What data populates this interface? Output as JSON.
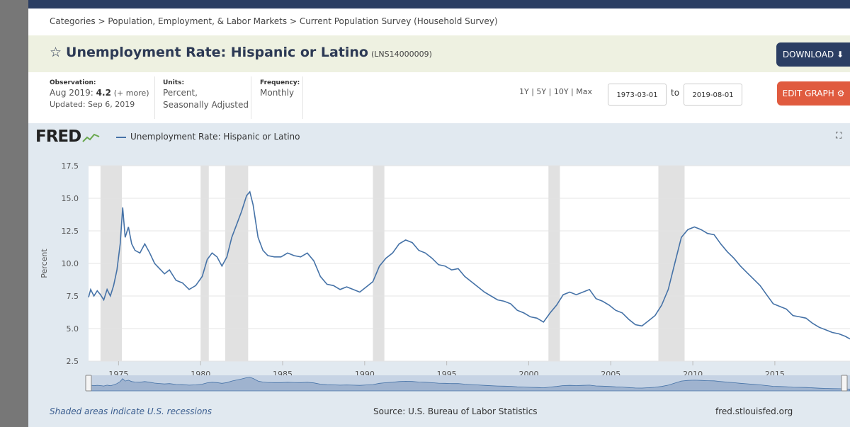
{
  "breadcrumb": "Categories > Population, Employment, & Labor Markets > Current Population Survey (Household Survey)",
  "title": {
    "star_icon": "star-outline-icon",
    "text": "Unemployment Rate: Hispanic or Latino",
    "series_id": "(LNS14000009)"
  },
  "buttons": {
    "download": "DOWNLOAD",
    "download_icon": "download-icon",
    "edit_graph": "EDIT GRAPH",
    "edit_icon": "gear-icon"
  },
  "observation": {
    "label": "Observation:",
    "date": "Aug 2019:",
    "value": "4.2",
    "more": "(+ more)",
    "updated": "Updated: Sep 6, 2019"
  },
  "units": {
    "label": "Units:",
    "line1": "Percent,",
    "line2": "Seasonally Adjusted"
  },
  "frequency": {
    "label": "Frequency:",
    "value": "Monthly"
  },
  "range_links": "1Y | 5Y | 10Y | Max",
  "date_from": "1973-03-01",
  "date_to": "2019-08-01",
  "to_label": "to",
  "logo": "FRED",
  "legend_label": "Unemployment Rate: Hispanic or Latino",
  "footer": {
    "recessions": "Shaded areas indicate U.S. recessions",
    "source": "Source: U.S. Bureau of Labor Statistics",
    "site": "fred.stlouisfed.org"
  },
  "colors": {
    "line": "#4572a7",
    "recession": "#e1e1e1",
    "header": "#2b3e63",
    "edit_button": "#e05b3f"
  },
  "chart_data": {
    "type": "line",
    "ylabel": "Percent",
    "ylim": [
      2.5,
      17.5
    ],
    "yticks": [
      2.5,
      5.0,
      7.5,
      10.0,
      12.5,
      15.0,
      17.5
    ],
    "ytick_labels": [
      "2.5",
      "5.0",
      "7.5",
      "10.0",
      "12.5",
      "15.0",
      "17.5"
    ],
    "xlim": [
      1973.17,
      2019.58
    ],
    "xticks": [
      1975,
      1980,
      1985,
      1990,
      1995,
      2000,
      2005,
      2010,
      2015
    ],
    "xtick_labels": [
      "1975",
      "1980",
      "1985",
      "1990",
      "1995",
      "2000",
      "2005",
      "2010",
      "2015"
    ],
    "recessions": [
      [
        1973.9,
        1975.2
      ],
      [
        1980.0,
        1980.5
      ],
      [
        1981.5,
        1982.9
      ],
      [
        1990.5,
        1991.2
      ],
      [
        2001.2,
        2001.9
      ],
      [
        2007.9,
        2009.5
      ]
    ],
    "series": [
      {
        "name": "Unemployment Rate: Hispanic or Latino",
        "x": [
          1973.17,
          1973.3,
          1973.5,
          1973.7,
          1973.9,
          1974.1,
          1974.3,
          1974.5,
          1974.7,
          1974.9,
          1975.1,
          1975.25,
          1975.4,
          1975.6,
          1975.8,
          1976.0,
          1976.3,
          1976.6,
          1976.9,
          1977.2,
          1977.5,
          1977.8,
          1978.1,
          1978.5,
          1978.9,
          1979.3,
          1979.7,
          1980.1,
          1980.4,
          1980.7,
          1981.0,
          1981.3,
          1981.6,
          1981.9,
          1982.2,
          1982.5,
          1982.8,
          1983.0,
          1983.2,
          1983.5,
          1983.8,
          1984.1,
          1984.5,
          1984.9,
          1985.3,
          1985.7,
          1986.1,
          1986.5,
          1986.9,
          1987.3,
          1987.7,
          1988.1,
          1988.5,
          1988.9,
          1989.3,
          1989.7,
          1990.1,
          1990.5,
          1990.9,
          1991.3,
          1991.7,
          1992.1,
          1992.5,
          1992.9,
          1993.3,
          1993.7,
          1994.1,
          1994.5,
          1994.9,
          1995.3,
          1995.7,
          1996.1,
          1996.5,
          1996.9,
          1997.3,
          1997.7,
          1998.1,
          1998.5,
          1998.9,
          1999.3,
          1999.7,
          2000.1,
          2000.5,
          2000.9,
          2001.3,
          2001.7,
          2002.1,
          2002.5,
          2002.9,
          2003.3,
          2003.7,
          2004.1,
          2004.5,
          2004.9,
          2005.3,
          2005.7,
          2006.1,
          2006.5,
          2006.9,
          2007.3,
          2007.7,
          2008.1,
          2008.5,
          2008.9,
          2009.3,
          2009.7,
          2010.1,
          2010.5,
          2010.9,
          2011.3,
          2011.7,
          2012.1,
          2012.5,
          2012.9,
          2013.3,
          2013.7,
          2014.1,
          2014.5,
          2014.9,
          2015.3,
          2015.7,
          2016.1,
          2016.5,
          2016.9,
          2017.3,
          2017.7,
          2018.1,
          2018.5,
          2018.9,
          2019.3,
          2019.58
        ],
        "values": [
          7.4,
          8.0,
          7.5,
          7.9,
          7.6,
          7.2,
          8.0,
          7.5,
          8.3,
          9.5,
          11.5,
          14.3,
          12.0,
          12.8,
          11.5,
          11.0,
          10.8,
          11.5,
          10.8,
          10.0,
          9.6,
          9.2,
          9.5,
          8.7,
          8.5,
          8.0,
          8.3,
          9.0,
          10.3,
          10.8,
          10.5,
          9.8,
          10.5,
          12.0,
          13.0,
          14.0,
          15.2,
          15.5,
          14.5,
          12.0,
          11.0,
          10.6,
          10.5,
          10.5,
          10.8,
          10.6,
          10.5,
          10.8,
          10.2,
          9.0,
          8.4,
          8.3,
          8.0,
          8.2,
          8.0,
          7.8,
          8.2,
          8.6,
          9.8,
          10.4,
          10.8,
          11.5,
          11.8,
          11.6,
          11.0,
          10.8,
          10.4,
          9.9,
          9.8,
          9.5,
          9.6,
          9.0,
          8.6,
          8.2,
          7.8,
          7.5,
          7.2,
          7.1,
          6.9,
          6.4,
          6.2,
          5.9,
          5.8,
          5.5,
          6.2,
          6.8,
          7.6,
          7.8,
          7.6,
          7.8,
          8.0,
          7.3,
          7.1,
          6.8,
          6.4,
          6.2,
          5.7,
          5.3,
          5.2,
          5.6,
          6.0,
          6.8,
          8.0,
          10.0,
          12.0,
          12.6,
          12.8,
          12.6,
          12.3,
          12.2,
          11.5,
          10.9,
          10.4,
          9.8,
          9.3,
          8.8,
          8.3,
          7.6,
          6.9,
          6.7,
          6.5,
          6.0,
          5.9,
          5.8,
          5.4,
          5.1,
          4.9,
          4.7,
          4.6,
          4.4,
          4.2
        ]
      }
    ]
  }
}
